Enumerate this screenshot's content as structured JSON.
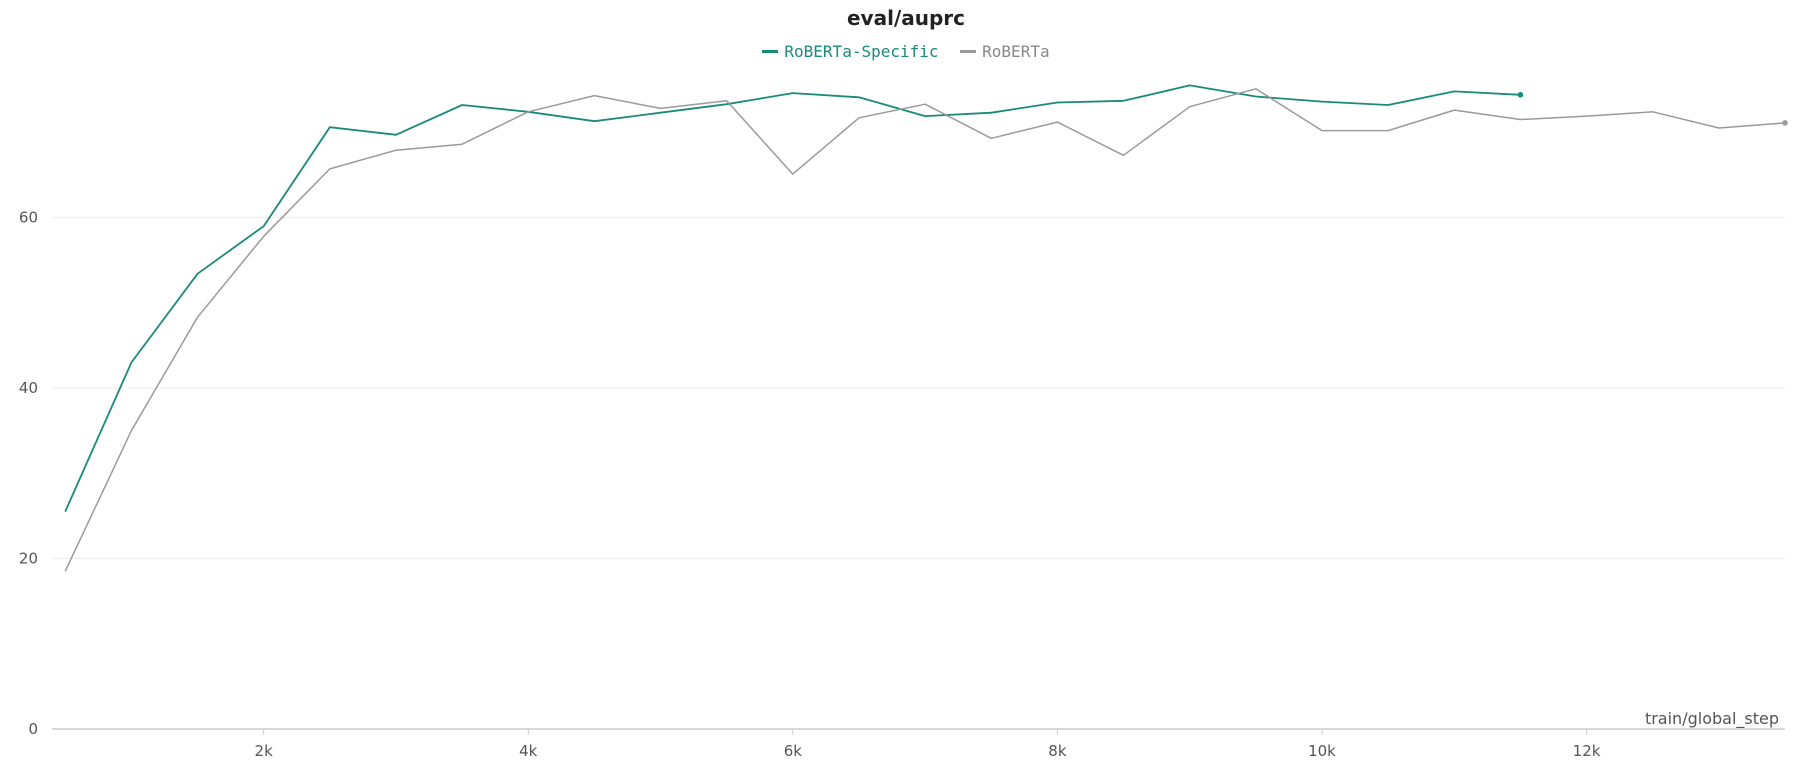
{
  "chart_data": {
    "type": "line",
    "title": "eval/auprc",
    "xlabel": "train/global_step",
    "ylabel": "",
    "xlim": [
      400,
      13500
    ],
    "ylim": [
      0,
      82
    ],
    "x_ticks": [
      {
        "v": 2000,
        "label": "2k"
      },
      {
        "v": 4000,
        "label": "4k"
      },
      {
        "v": 6000,
        "label": "6k"
      },
      {
        "v": 8000,
        "label": "8k"
      },
      {
        "v": 10000,
        "label": "10k"
      },
      {
        "v": 12000,
        "label": "12k"
      }
    ],
    "y_ticks": [
      {
        "v": 0,
        "label": "0"
      },
      {
        "v": 20,
        "label": "20"
      },
      {
        "v": 40,
        "label": "40"
      },
      {
        "v": 60,
        "label": "60"
      }
    ],
    "grid": true,
    "legend_position": "top-center",
    "series": [
      {
        "name": "RoBERTa-Specific",
        "color": "#1a8a7a",
        "x": [
          500,
          1000,
          1500,
          2000,
          2500,
          3000,
          3500,
          4000,
          4500,
          5000,
          5500,
          6000,
          6500,
          7000,
          7500,
          8000,
          8500,
          9000,
          9500,
          10000,
          10500,
          11000,
          11500
        ],
        "y": [
          25.5,
          43,
          53.4,
          59,
          70.6,
          69.7,
          73.2,
          72.4,
          71.3,
          72.3,
          73.3,
          74.6,
          74.1,
          71.9,
          72.3,
          73.5,
          73.7,
          75.5,
          74.2,
          73.6,
          73.2,
          74.8,
          74.4
        ]
      },
      {
        "name": "RoBERTa",
        "color": "#9a9a9a",
        "x": [
          500,
          1000,
          1500,
          2000,
          2500,
          3000,
          3500,
          4000,
          4500,
          5000,
          5500,
          6000,
          6500,
          7000,
          7500,
          8000,
          8500,
          9000,
          9500,
          10000,
          10500,
          11000,
          11500,
          12000,
          12500,
          13000,
          13500
        ],
        "y": [
          18.5,
          35,
          48.3,
          57.8,
          65.7,
          67.9,
          68.6,
          72.4,
          74.3,
          72.8,
          73.7,
          65.1,
          71.7,
          73.3,
          69.3,
          71.2,
          67.3,
          73,
          75.1,
          70.2,
          70.2,
          72.6,
          71.5,
          71.9,
          72.4,
          70.5,
          71.1
        ]
      }
    ]
  }
}
